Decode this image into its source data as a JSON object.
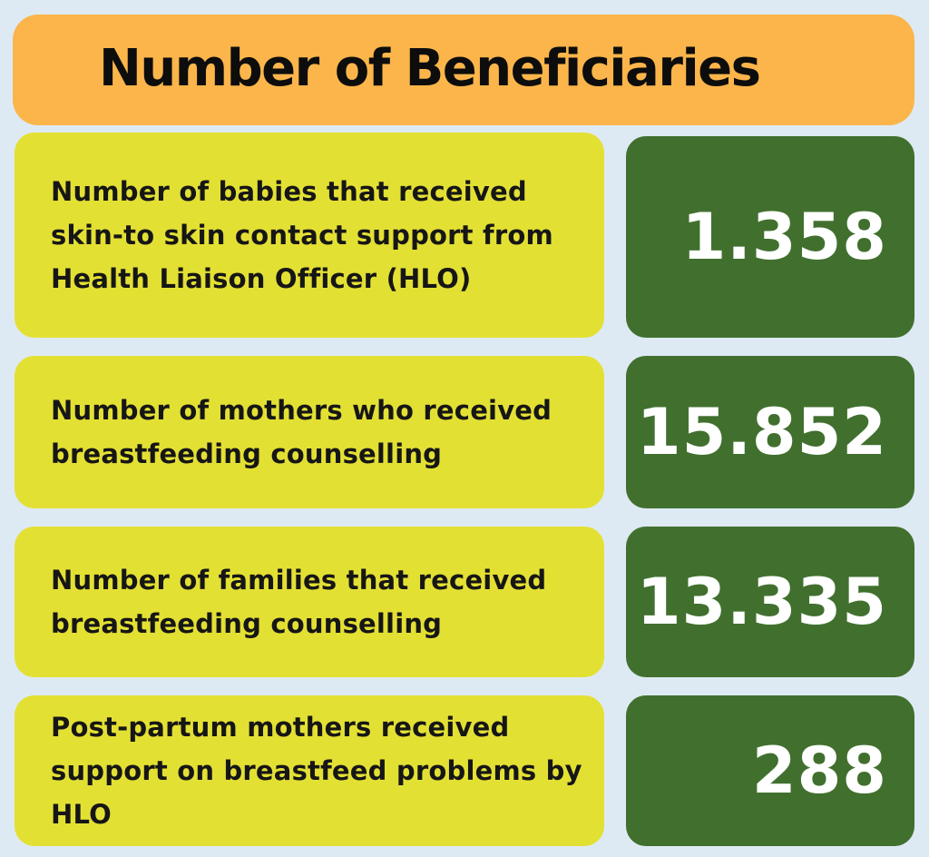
{
  "title": "Number of Beneficiaries",
  "colors": {
    "background": "#deeaf3",
    "title_bar": "#fbb54a",
    "label_card": "#e3e034",
    "value_card": "#41702e"
  },
  "rows": [
    {
      "label": "Number of babies that received skin-to skin contact support from Health Liaison Officer (HLO)",
      "value": "1.358"
    },
    {
      "label": "Number of mothers who received breastfeeding counselling",
      "value": "15.852"
    },
    {
      "label": "Number of families that received breastfeeding counselling",
      "value": "13.335"
    },
    {
      "label": "Post-partum mothers received support on breastfeed problems by HLO",
      "value": "288"
    }
  ]
}
